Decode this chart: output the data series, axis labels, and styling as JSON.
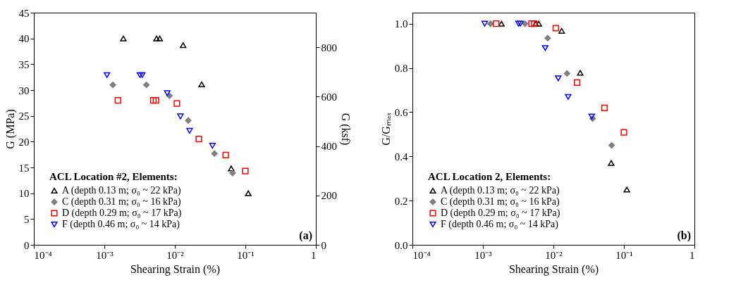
{
  "chart_data": [
    {
      "type": "scatter",
      "ylabel": "G (MPa)",
      "y2label": "G (ksf)",
      "xlabel": "Shearing Strain (%)",
      "legend_title": "ACL Location #2, Elements:",
      "legend": "bottom left",
      "log": "x",
      "grid": false,
      "xlim": [
        0.0001,
        1
      ],
      "xticks": [
        {
          "value": 0.0001,
          "label": "10⁻⁴"
        },
        {
          "value": 0.001,
          "label": "10⁻³"
        },
        {
          "value": 0.01,
          "label": "10⁻²"
        },
        {
          "value": 0.1,
          "label": "10⁻¹"
        },
        1
      ],
      "ylim": [
        0,
        45
      ],
      "yticks": [
        0,
        5,
        10,
        15,
        20,
        25,
        30,
        35,
        40,
        45
      ],
      "y2lim": [
        0,
        939.8
      ],
      "y2ticks": [
        0,
        200,
        400,
        600,
        800
      ],
      "annotations": [
        "(a)"
      ],
      "series": [
        {
          "name": "A (depth 0.13 m; σ₀ ~ 22 kPa)",
          "color": "#000000",
          "marker": "triangle",
          "x": [
            0.00186,
            0.0055,
            0.0061,
            0.0131,
            0.024,
            0.063,
            0.11
          ],
          "values": [
            40.0,
            40.0,
            40.0,
            38.7,
            31.1,
            14.8,
            10.0
          ]
        },
        {
          "name": "C (depth 0.31 m; σ₀ ~ 16 kPa)",
          "color": "#808080",
          "marker": "diamond",
          "x": [
            0.00132,
            0.00395,
            0.0084,
            0.0155,
            0.0365,
            0.066
          ],
          "values": [
            31.0,
            31.0,
            28.9,
            24.1,
            17.7,
            13.9
          ]
        },
        {
          "name": "D (depth 0.29 m; σ₀ ~ 17 kPa)",
          "color": "#ff0000",
          "marker": "square",
          "x": [
            0.00156,
            0.00495,
            0.0054,
            0.0107,
            0.0219,
            0.0527,
            0.1
          ],
          "values": [
            28.0,
            28.0,
            28.0,
            27.4,
            20.5,
            17.4,
            14.3
          ]
        },
        {
          "name": "F (depth 0.46 m; σ₀ ~ 14 kPa)",
          "color": "#0000ff",
          "marker": "triangle-down",
          "x": [
            0.00109,
            0.0032,
            0.00345,
            0.0078,
            0.012,
            0.0162,
            0.0342
          ],
          "values": [
            32.9,
            32.9,
            32.9,
            29.4,
            24.9,
            22.1,
            19.2
          ]
        }
      ]
    },
    {
      "type": "scatter",
      "ylabel": "G/Gₘₐₓ",
      "xlabel": "Shearing Strain (%)",
      "legend_title": "ACL Location 2, Elements:",
      "legend": "bottom left",
      "log": "x",
      "grid": false,
      "xlim": [
        0.0001,
        1
      ],
      "xticks": [
        {
          "value": 0.0001,
          "label": "10⁻⁴"
        },
        {
          "value": 0.001,
          "label": "10⁻³"
        },
        {
          "value": 0.01,
          "label": "10⁻²"
        },
        {
          "value": 0.1,
          "label": "10⁻¹"
        },
        1
      ],
      "ylim": [
        0,
        1.05
      ],
      "yticks": [
        {
          "value": 0,
          "label": "0.0"
        },
        0.2,
        0.4,
        0.6,
        0.8,
        {
          "value": 1,
          "label": "1.0"
        }
      ],
      "annotations": [
        "(b)"
      ],
      "series": [
        {
          "name": "A (depth 0.13 m; σ₀ ~ 22 kPa)",
          "color": "#000000",
          "marker": "triangle",
          "x": [
            0.00183,
            0.0056,
            0.0062,
            0.0131,
            0.024,
            0.066,
            0.11
          ],
          "values": [
            1.0,
            1.0,
            1.0,
            0.968,
            0.778,
            0.37,
            0.25
          ]
        },
        {
          "name": "C (depth 0.31 m; σ₀ ~ 16 kPa)",
          "color": "#808080",
          "marker": "diamond",
          "x": [
            0.00128,
            0.00396,
            0.0083,
            0.0156,
            0.036,
            0.067
          ],
          "values": [
            1.0,
            1.0,
            0.935,
            0.775,
            0.571,
            0.45
          ]
        },
        {
          "name": "D (depth 0.29 m; σ₀ ~ 17 kPa)",
          "color": "#ff0000",
          "marker": "square",
          "x": [
            0.00154,
            0.0049,
            0.00535,
            0.0108,
            0.0217,
            0.053,
            0.1
          ],
          "values": [
            1.0,
            1.0,
            1.0,
            0.98,
            0.734,
            0.619,
            0.509
          ]
        },
        {
          "name": "F (depth 0.46 m; σ₀ ~ 14 kPa)",
          "color": "#0000ff",
          "marker": "triangle-down",
          "x": [
            0.00106,
            0.0032,
            0.0034,
            0.00765,
            0.0117,
            0.0162,
            0.035
          ],
          "values": [
            1.0,
            1.0,
            1.0,
            0.89,
            0.753,
            0.669,
            0.58
          ]
        }
      ]
    }
  ]
}
